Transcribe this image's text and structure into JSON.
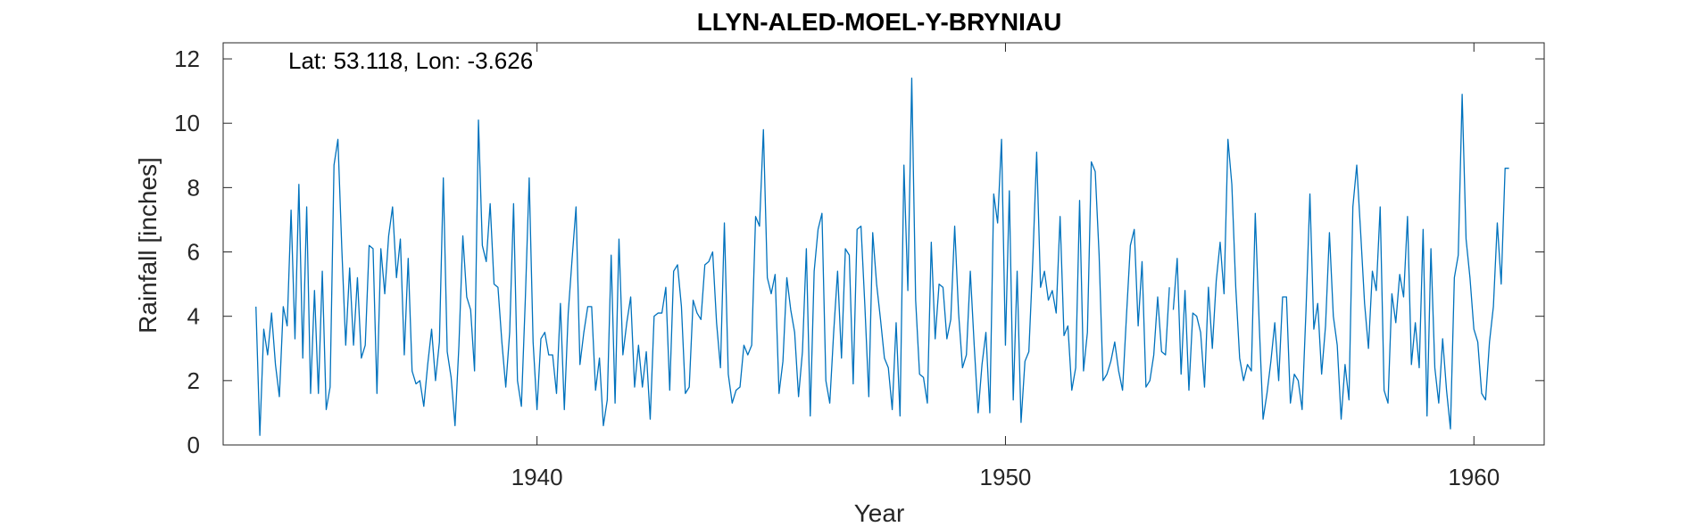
{
  "chart_data": {
    "type": "line",
    "title": "LLYN-ALED-MOEL-Y-BRYNIAU",
    "annotation": "Lat: 53.118, Lon: -3.626",
    "xlabel": "Year",
    "ylabel": "Rainfall [inches]",
    "xlim": [
      1933.3,
      1961.5
    ],
    "ylim": [
      0,
      12.5
    ],
    "xticks": [
      1940,
      1950,
      1960
    ],
    "yticks": [
      0,
      2,
      4,
      6,
      8,
      10,
      12
    ],
    "grid": false,
    "box": true,
    "series": [
      {
        "color": "#0072BD",
        "x_start": 1934.0,
        "x_step": 0.08333,
        "values": [
          4.3,
          0.3,
          3.6,
          2.8,
          4.1,
          2.5,
          1.5,
          4.3,
          3.7,
          7.3,
          3.3,
          8.1,
          2.7,
          7.4,
          1.6,
          4.8,
          1.6,
          5.4,
          1.1,
          1.8,
          8.7,
          9.5,
          6.1,
          3.1,
          5.5,
          3.1,
          5.2,
          2.7,
          3.1,
          6.2,
          6.1,
          1.6,
          6.1,
          4.7,
          6.5,
          7.4,
          5.2,
          6.4,
          2.8,
          5.8,
          2.3,
          1.9,
          2.0,
          1.2,
          2.5,
          3.6,
          2.0,
          3.2,
          8.3,
          2.9,
          2.1,
          0.6,
          3.1,
          6.5,
          4.6,
          4.2,
          2.3,
          10.1,
          6.2,
          5.7,
          7.5,
          5.0,
          4.9,
          3.2,
          1.8,
          3.5,
          7.5,
          2.0,
          1.2,
          4.5,
          8.3,
          3.2,
          1.1,
          3.3,
          3.5,
          2.8,
          2.8,
          1.6,
          4.4,
          1.1,
          4.1,
          5.8,
          7.4,
          2.5,
          3.5,
          4.3,
          4.3,
          1.7,
          2.7,
          0.6,
          1.4,
          5.9,
          1.3,
          6.4,
          2.8,
          3.8,
          4.6,
          1.8,
          3.1,
          1.8,
          2.9,
          0.8,
          4.0,
          4.1,
          4.1,
          4.9,
          1.7,
          5.4,
          5.6,
          4.3,
          1.6,
          1.8,
          4.5,
          4.1,
          3.9,
          5.6,
          5.7,
          6.0,
          3.8,
          2.4,
          6.9,
          2.2,
          1.3,
          1.7,
          1.8,
          3.1,
          2.8,
          3.1,
          7.1,
          6.8,
          9.8,
          5.2,
          4.7,
          5.3,
          1.6,
          2.6,
          5.2,
          4.2,
          3.5,
          1.5,
          2.9,
          6.1,
          0.9,
          5.4,
          6.7,
          7.2,
          2.0,
          1.3,
          3.5,
          5.4,
          2.7,
          6.1,
          5.9,
          1.9,
          6.7,
          6.8,
          4.3,
          1.5,
          6.6,
          5.0,
          3.9,
          2.7,
          2.4,
          1.1,
          3.8,
          0.9,
          8.7,
          4.8,
          11.4,
          4.5,
          2.2,
          2.1,
          1.3,
          6.3,
          3.3,
          5.0,
          4.9,
          3.3,
          3.9,
          6.8,
          4.1,
          2.4,
          2.8,
          5.4,
          3.1,
          1.0,
          2.5,
          3.5,
          1.0,
          7.8,
          6.9,
          9.5,
          3.1,
          7.9,
          1.4,
          5.4,
          0.7,
          2.6,
          2.9,
          5.7,
          9.1,
          4.9,
          5.4,
          4.5,
          4.8,
          4.1,
          7.1,
          3.4,
          3.7,
          1.7,
          2.4,
          7.6,
          2.3,
          3.5,
          8.8,
          8.5,
          5.9,
          2.0,
          2.2,
          2.6,
          3.2,
          2.3,
          1.7,
          4.0,
          6.2,
          6.7,
          3.7,
          5.7,
          1.8,
          2.0,
          2.8,
          4.6,
          2.9,
          2.8,
          4.9,
          4.2,
          5.8,
          2.2,
          4.8,
          1.7,
          4.1,
          4.0,
          3.5,
          1.8,
          4.9,
          3.0,
          5.1,
          6.3,
          4.7,
          9.5,
          8.1,
          4.9,
          2.7,
          2.0,
          2.5,
          2.3,
          7.2,
          3.8,
          0.8,
          1.6,
          2.6,
          3.8,
          2.0,
          4.6,
          4.6,
          1.3,
          2.2,
          2.0,
          1.1,
          4.2,
          7.8,
          3.6,
          4.4,
          2.2,
          3.7,
          6.6,
          4.0,
          3.1,
          0.8,
          2.5,
          1.4,
          7.4,
          8.7,
          6.6,
          4.4,
          3.0,
          5.4,
          4.8,
          7.4,
          1.7,
          1.3,
          4.7,
          3.8,
          5.3,
          4.6,
          7.1,
          2.5,
          3.8,
          2.4,
          6.7,
          0.9,
          6.1,
          2.4,
          1.3,
          3.3,
          1.7,
          0.5,
          5.2,
          5.9,
          10.9,
          6.4,
          5.2,
          3.6,
          3.2,
          1.6,
          1.4,
          3.2,
          4.3,
          6.9,
          5.0,
          8.6,
          8.6
        ],
        "gaps_after_index": [
          234
        ]
      }
    ]
  }
}
